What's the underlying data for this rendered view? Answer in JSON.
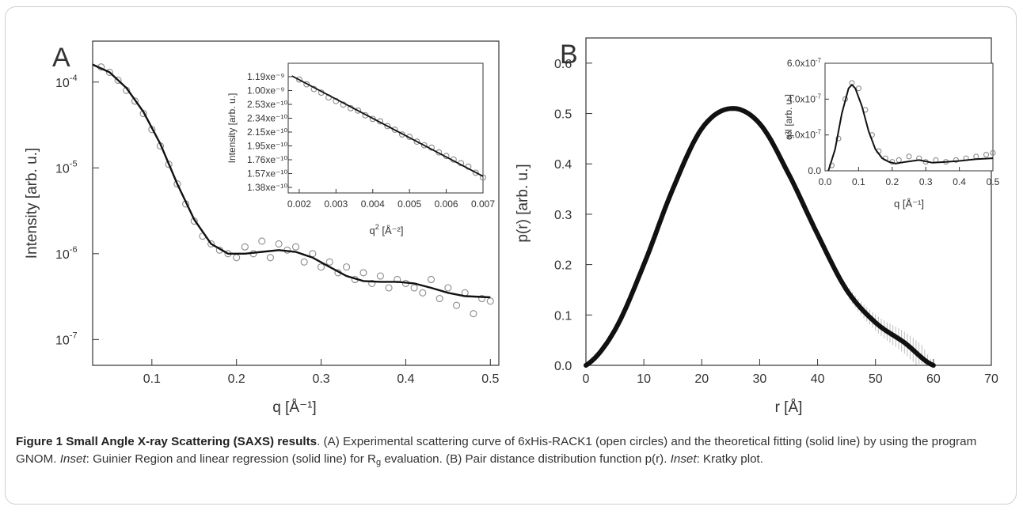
{
  "chart_data": [
    {
      "type": "scatter",
      "panel": "A",
      "xlabel": "q [Å⁻¹]",
      "ylabel": "Intensity [arb. u.]",
      "xlim": [
        0.03,
        0.51
      ],
      "ylim": [
        5e-08,
        0.0003
      ],
      "log_y": true,
      "xticks": [
        "0.1",
        "0.2",
        "0.3",
        "0.4",
        "0.5"
      ],
      "yticks": [
        "10",
        "10",
        "10",
        "10"
      ],
      "ytick_exponents": [
        "-4",
        "-5",
        "-6",
        "-7"
      ],
      "series": [
        {
          "style": "open circles",
          "x": [
            0.04,
            0.05,
            0.06,
            0.07,
            0.08,
            0.09,
            0.1,
            0.11,
            0.12,
            0.13,
            0.14,
            0.15,
            0.16,
            0.17,
            0.18,
            0.19,
            0.2,
            0.21,
            0.22,
            0.23,
            0.24,
            0.25,
            0.26,
            0.27,
            0.28,
            0.29,
            0.3,
            0.31,
            0.32,
            0.33,
            0.34,
            0.35,
            0.36,
            0.37,
            0.38,
            0.39,
            0.4,
            0.41,
            0.42,
            0.43,
            0.44,
            0.45,
            0.46,
            0.47,
            0.48,
            0.49,
            0.5
          ],
          "y": [
            0.00015,
            0.00013,
            0.000105,
            8e-05,
            6e-05,
            4.3e-05,
            2.8e-05,
            1.8e-05,
            1.1e-05,
            6.5e-06,
            3.8e-06,
            2.4e-06,
            1.6e-06,
            1.3e-06,
            1.1e-06,
            1e-06,
            9e-07,
            1.2e-06,
            1e-06,
            1.4e-06,
            9e-07,
            1.3e-06,
            1.1e-06,
            1.2e-06,
            8e-07,
            1e-06,
            7e-07,
            8e-07,
            6e-07,
            7e-07,
            5e-07,
            6e-07,
            4.5e-07,
            5.5e-07,
            4e-07,
            5e-07,
            4.5e-07,
            4e-07,
            3.5e-07,
            5e-07,
            3e-07,
            4e-07,
            2.5e-07,
            3.5e-07,
            2e-07,
            3e-07,
            2.8e-07
          ]
        },
        {
          "style": "solid line",
          "x": [
            0.03,
            0.05,
            0.07,
            0.09,
            0.11,
            0.13,
            0.15,
            0.17,
            0.19,
            0.21,
            0.23,
            0.25,
            0.27,
            0.29,
            0.31,
            0.33,
            0.35,
            0.37,
            0.39,
            0.41,
            0.43,
            0.45,
            0.47,
            0.5
          ],
          "y": [
            0.00016,
            0.00013,
            8.5e-05,
            4.5e-05,
            1.9e-05,
            6.5e-06,
            2.5e-06,
            1.3e-06,
            1e-06,
            1e-06,
            1.05e-06,
            1.1e-06,
            1.05e-06,
            9e-07,
            7e-07,
            5.5e-07,
            4.8e-07,
            4.7e-07,
            4.7e-07,
            4.5e-07,
            4e-07,
            3.5e-07,
            3.2e-07,
            3.1e-07
          ]
        }
      ]
    },
    {
      "type": "scatter",
      "panel": "A-inset",
      "xlabel": "q",
      "xlabel_sup": "2",
      "xlabel_unit": "[Å⁻²]",
      "ylabel": "Intensity [arb. u.]",
      "xlim": [
        0.0017,
        0.007
      ],
      "xticks": [
        "0.002",
        "0.003",
        "0.004",
        "0.005",
        "0.006",
        "0.007"
      ],
      "yticks": [
        "1.19xe⁻⁹",
        "1.00xe⁻⁹",
        "2.53xe⁻¹⁰",
        "2.34xe⁻¹⁰",
        "2.15xe⁻¹⁰",
        "1.95xe⁻¹⁰",
        "1.76xe⁻¹⁰",
        "1.57xe⁻¹⁰",
        "1.38xe⁻¹⁰"
      ],
      "series": [
        {
          "style": "open circles",
          "x": [
            0.002,
            0.0022,
            0.0024,
            0.0026,
            0.0028,
            0.003,
            0.0032,
            0.0034,
            0.0036,
            0.0038,
            0.004,
            0.0042,
            0.0044,
            0.0046,
            0.0048,
            0.005,
            0.0052,
            0.0054,
            0.0056,
            0.0058,
            0.006,
            0.0062,
            0.0064,
            0.0066,
            0.0068,
            0.007
          ],
          "y": [
            0.97,
            0.93,
            0.89,
            0.86,
            0.82,
            0.79,
            0.76,
            0.73,
            0.71,
            0.67,
            0.64,
            0.62,
            0.58,
            0.55,
            0.51,
            0.49,
            0.45,
            0.42,
            0.4,
            0.36,
            0.33,
            0.3,
            0.27,
            0.24,
            0.19,
            0.15
          ]
        },
        {
          "style": "solid line",
          "x": [
            0.0018,
            0.007
          ],
          "y": [
            1.0,
            0.16
          ]
        }
      ]
    },
    {
      "type": "line",
      "panel": "B",
      "xlabel": "r [Å]",
      "ylabel": "p(r) [arb. u.]",
      "xlim": [
        0,
        70
      ],
      "ylim": [
        0,
        0.65
      ],
      "xticks": [
        "0",
        "10",
        "20",
        "30",
        "40",
        "50",
        "60",
        "70"
      ],
      "yticks": [
        "0.0",
        "0.1",
        "0.2",
        "0.3",
        "0.4",
        "0.5",
        "0.6"
      ],
      "series": [
        {
          "style": "thick line with error bars",
          "x": [
            0,
            5,
            10,
            15,
            20,
            25,
            30,
            35,
            40,
            45,
            50,
            55,
            60
          ],
          "y": [
            0.0,
            0.07,
            0.2,
            0.35,
            0.47,
            0.51,
            0.48,
            0.38,
            0.26,
            0.15,
            0.085,
            0.045,
            0.0
          ]
        }
      ]
    },
    {
      "type": "scatter",
      "panel": "B-inset",
      "xlabel": "q [Å⁻¹]",
      "ylabel": "q²I [arb. u.]",
      "xlim": [
        0,
        0.5
      ],
      "ylim": [
        0,
        6e-07
      ],
      "xticks": [
        "0.0",
        "0.1",
        "0.2",
        "0.3",
        "0.4",
        "0.5"
      ],
      "yticks": [
        "0.0",
        "2.0x10",
        "4.0x10",
        "6.0x10"
      ],
      "ytick_exponents": [
        "",
        "-7",
        "-7",
        "-7"
      ],
      "series": [
        {
          "style": "open circles",
          "x": [
            0.02,
            0.04,
            0.06,
            0.08,
            0.1,
            0.12,
            0.14,
            0.16,
            0.18,
            0.2,
            0.22,
            0.25,
            0.28,
            0.3,
            0.33,
            0.36,
            0.39,
            0.42,
            0.45,
            0.48,
            0.5
          ],
          "y": [
            3e-08,
            1.8e-07,
            4e-07,
            4.9e-07,
            4.6e-07,
            3.4e-07,
            2e-07,
            1.1e-07,
            7e-08,
            5e-08,
            6e-08,
            8e-08,
            7e-08,
            5e-08,
            6e-08,
            5e-08,
            6e-08,
            7e-08,
            8e-08,
            9e-08,
            1e-07
          ]
        },
        {
          "style": "solid line",
          "x": [
            0.01,
            0.03,
            0.05,
            0.07,
            0.08,
            0.09,
            0.11,
            0.13,
            0.15,
            0.17,
            0.19,
            0.21,
            0.24,
            0.28,
            0.32,
            0.36,
            0.4,
            0.45,
            0.5
          ],
          "y": [
            0.0,
            1.2e-07,
            3.2e-07,
            4.6e-07,
            4.8e-07,
            4.6e-07,
            3.6e-07,
            2.2e-07,
            1.2e-07,
            7e-08,
            5e-08,
            4e-08,
            5e-08,
            6e-08,
            4.5e-08,
            5e-08,
            5.5e-08,
            6.5e-08,
            7e-08
          ]
        }
      ]
    }
  ],
  "panels": {
    "a_letter": "A",
    "b_letter": "B"
  },
  "caption": {
    "bold": "Figure 1 Small Angle X-ray Scattering (SAXS) results",
    "t1": ". (A) Experimental scattering curve of 6xHis-RACK1 (open circles) and the theoretical fitting (solid line) by using the program GNOM. ",
    "inset1": "Inset",
    "t2": ": Guinier Region and linear regression (solid line) for R",
    "sub": "g",
    "t3": " evaluation. (B) Pair distance distribution function p(r). ",
    "inset2": "Inset",
    "t4": ": Kratky plot."
  },
  "colors": {
    "marker": "#8a8a8a",
    "line": "#111111",
    "errorbar": "#bdbdbd",
    "frame": "#cfcfcf"
  }
}
